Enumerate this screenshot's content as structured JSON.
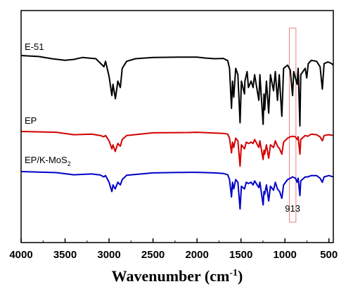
{
  "chart_data": {
    "type": "line",
    "title": "",
    "xlabel": "Wavenumber (cm",
    "xlabel_sup": "-1",
    "xlabel_tail": ")",
    "ylabel": "",
    "xlim": [
      4000,
      450
    ],
    "x_reversed": true,
    "y_ticks_shown": false,
    "grid": false,
    "x_ticks": [
      4000,
      3500,
      3000,
      2500,
      2000,
      1500,
      1000,
      500
    ],
    "x_tick_labels": [
      "4000",
      "3500",
      "3000",
      "2500",
      "2000",
      "1500",
      "1000",
      "500"
    ],
    "highlight_band": {
      "x_range": [
        950,
        875
      ],
      "color": "#e88080"
    },
    "annotation": {
      "text": "913",
      "x": 913
    },
    "series": [
      {
        "name": "E-51",
        "color": "#000000",
        "label_text": "E-51",
        "points": [
          [
            4000,
            0.0
          ],
          [
            3800,
            -0.3
          ],
          [
            3650,
            -1.0
          ],
          [
            3500,
            -1.5
          ],
          [
            3400,
            -1.2
          ],
          [
            3300,
            -0.6
          ],
          [
            3150,
            -1.0
          ],
          [
            3058,
            -3.5
          ],
          [
            3040,
            -1.8
          ],
          [
            3000,
            -6.5
          ],
          [
            2968,
            -12.5
          ],
          [
            2955,
            -9.0
          ],
          [
            2928,
            -13.5
          ],
          [
            2900,
            -8.0
          ],
          [
            2872,
            -10.0
          ],
          [
            2850,
            -4.0
          ],
          [
            2800,
            -1.8
          ],
          [
            2700,
            -1.0
          ],
          [
            2500,
            -0.6
          ],
          [
            2200,
            -0.5
          ],
          [
            2000,
            -0.5
          ],
          [
            1900,
            -0.8
          ],
          [
            1800,
            -1.0
          ],
          [
            1700,
            -0.9
          ],
          [
            1650,
            -1.6
          ],
          [
            1630,
            -4.0
          ],
          [
            1608,
            -16.5
          ],
          [
            1596,
            -8.0
          ],
          [
            1582,
            -13.0
          ],
          [
            1560,
            -4.0
          ],
          [
            1535,
            -6.0
          ],
          [
            1510,
            -21.0
          ],
          [
            1495,
            -8.0
          ],
          [
            1460,
            -12.0
          ],
          [
            1455,
            -8.0
          ],
          [
            1430,
            -5.0
          ],
          [
            1415,
            -10.0
          ],
          [
            1385,
            -8.0
          ],
          [
            1362,
            -10.0
          ],
          [
            1345,
            -6.0
          ],
          [
            1297,
            -14.0
          ],
          [
            1285,
            -6.0
          ],
          [
            1248,
            -21.5
          ],
          [
            1238,
            -12.0
          ],
          [
            1230,
            -17.0
          ],
          [
            1210,
            -8.0
          ],
          [
            1185,
            -18.0
          ],
          [
            1165,
            -6.0
          ],
          [
            1130,
            -11.0
          ],
          [
            1110,
            -5.0
          ],
          [
            1085,
            -14.0
          ],
          [
            1065,
            -6.0
          ],
          [
            1035,
            -19.0
          ],
          [
            1015,
            -4.0
          ],
          [
            970,
            -3.0
          ],
          [
            940,
            -4.5
          ],
          [
            913,
            -12.5
          ],
          [
            900,
            -5.0
          ],
          [
            862,
            -9.0
          ],
          [
            850,
            -4.0
          ],
          [
            830,
            -22.0
          ],
          [
            820,
            -6.0
          ],
          [
            770,
            -4.0
          ],
          [
            752,
            -7.0
          ],
          [
            735,
            -2.5
          ],
          [
            700,
            -1.5
          ],
          [
            640,
            -1.8
          ],
          [
            600,
            -3.5
          ],
          [
            575,
            -10.5
          ],
          [
            555,
            -2.5
          ],
          [
            510,
            -2.0
          ],
          [
            470,
            -2.5
          ],
          [
            450,
            -3.0
          ]
        ]
      },
      {
        "name": "EP",
        "color": "#d40000",
        "label_text": "EP",
        "points": [
          [
            4000,
            0.0
          ],
          [
            3600,
            -0.3
          ],
          [
            3400,
            -1.2
          ],
          [
            3200,
            -1.0
          ],
          [
            3100,
            -1.5
          ],
          [
            3060,
            -2.0
          ],
          [
            3040,
            -1.5
          ],
          [
            3000,
            -3.5
          ],
          [
            2968,
            -6.5
          ],
          [
            2955,
            -5.0
          ],
          [
            2930,
            -7.5
          ],
          [
            2900,
            -4.5
          ],
          [
            2872,
            -5.5
          ],
          [
            2850,
            -3.0
          ],
          [
            2800,
            -1.5
          ],
          [
            2500,
            -0.5
          ],
          [
            2100,
            -0.4
          ],
          [
            2000,
            -0.3
          ],
          [
            1800,
            -0.6
          ],
          [
            1700,
            -0.7
          ],
          [
            1650,
            -1.0
          ],
          [
            1630,
            -2.5
          ],
          [
            1608,
            -8.0
          ],
          [
            1596,
            -4.0
          ],
          [
            1582,
            -6.0
          ],
          [
            1560,
            -2.5
          ],
          [
            1535,
            -3.5
          ],
          [
            1510,
            -13.0
          ],
          [
            1495,
            -5.0
          ],
          [
            1460,
            -6.5
          ],
          [
            1440,
            -4.0
          ],
          [
            1415,
            -4.5
          ],
          [
            1385,
            -4.0
          ],
          [
            1362,
            -4.5
          ],
          [
            1345,
            -3.0
          ],
          [
            1297,
            -6.0
          ],
          [
            1285,
            -3.5
          ],
          [
            1248,
            -10.5
          ],
          [
            1238,
            -7.0
          ],
          [
            1230,
            -8.5
          ],
          [
            1210,
            -5.0
          ],
          [
            1185,
            -10.0
          ],
          [
            1165,
            -5.0
          ],
          [
            1130,
            -6.0
          ],
          [
            1110,
            -3.5
          ],
          [
            1085,
            -5.5
          ],
          [
            1060,
            -6.5
          ],
          [
            1035,
            -8.5
          ],
          [
            1015,
            -4.0
          ],
          [
            970,
            -2.5
          ],
          [
            940,
            -2.0
          ],
          [
            913,
            -1.8
          ],
          [
            880,
            -2.0
          ],
          [
            862,
            -3.0
          ],
          [
            850,
            -2.0
          ],
          [
            830,
            -8.5
          ],
          [
            820,
            -3.0
          ],
          [
            770,
            -1.5
          ],
          [
            740,
            -1.8
          ],
          [
            700,
            -1.0
          ],
          [
            640,
            -1.2
          ],
          [
            600,
            -2.0
          ],
          [
            575,
            -3.5
          ],
          [
            555,
            -1.5
          ],
          [
            500,
            -1.2
          ],
          [
            450,
            -1.5
          ]
        ]
      },
      {
        "name": "EP/K-MoS2",
        "color": "#0000c8",
        "label_text": "EP/K-MoS",
        "label_sub": "2",
        "points": [
          [
            4000,
            0.0
          ],
          [
            3600,
            -0.4
          ],
          [
            3400,
            -1.2
          ],
          [
            3200,
            -0.9
          ],
          [
            3100,
            -1.3
          ],
          [
            3060,
            -2.0
          ],
          [
            3040,
            -1.5
          ],
          [
            3000,
            -4.0
          ],
          [
            2968,
            -7.5
          ],
          [
            2955,
            -5.0
          ],
          [
            2930,
            -6.5
          ],
          [
            2900,
            -4.0
          ],
          [
            2872,
            -5.0
          ],
          [
            2850,
            -3.0
          ],
          [
            2800,
            -1.4
          ],
          [
            2500,
            -0.5
          ],
          [
            2100,
            -0.3
          ],
          [
            2000,
            -0.3
          ],
          [
            1800,
            -0.5
          ],
          [
            1700,
            -0.7
          ],
          [
            1650,
            -1.2
          ],
          [
            1630,
            -3.0
          ],
          [
            1608,
            -9.5
          ],
          [
            1596,
            -4.0
          ],
          [
            1582,
            -6.5
          ],
          [
            1560,
            -3.0
          ],
          [
            1535,
            -4.0
          ],
          [
            1510,
            -14.0
          ],
          [
            1495,
            -5.5
          ],
          [
            1460,
            -6.5
          ],
          [
            1440,
            -4.0
          ],
          [
            1415,
            -4.5
          ],
          [
            1385,
            -4.0
          ],
          [
            1362,
            -5.0
          ],
          [
            1345,
            -3.5
          ],
          [
            1297,
            -6.0
          ],
          [
            1285,
            -4.0
          ],
          [
            1248,
            -12.5
          ],
          [
            1238,
            -7.5
          ],
          [
            1230,
            -8.5
          ],
          [
            1210,
            -5.0
          ],
          [
            1185,
            -11.0
          ],
          [
            1165,
            -5.5
          ],
          [
            1130,
            -7.0
          ],
          [
            1110,
            -4.0
          ],
          [
            1085,
            -6.5
          ],
          [
            1060,
            -7.5
          ],
          [
            1035,
            -10.0
          ],
          [
            1015,
            -5.0
          ],
          [
            970,
            -3.0
          ],
          [
            940,
            -2.5
          ],
          [
            913,
            -2.0
          ],
          [
            880,
            -2.5
          ],
          [
            862,
            -4.0
          ],
          [
            850,
            -2.5
          ],
          [
            830,
            -9.0
          ],
          [
            820,
            -3.5
          ],
          [
            770,
            -2.0
          ],
          [
            740,
            -2.0
          ],
          [
            700,
            -1.5
          ],
          [
            640,
            -1.5
          ],
          [
            600,
            -2.5
          ],
          [
            575,
            -4.0
          ],
          [
            555,
            -2.0
          ],
          [
            500,
            -1.5
          ],
          [
            450,
            -2.0
          ]
        ]
      }
    ]
  }
}
